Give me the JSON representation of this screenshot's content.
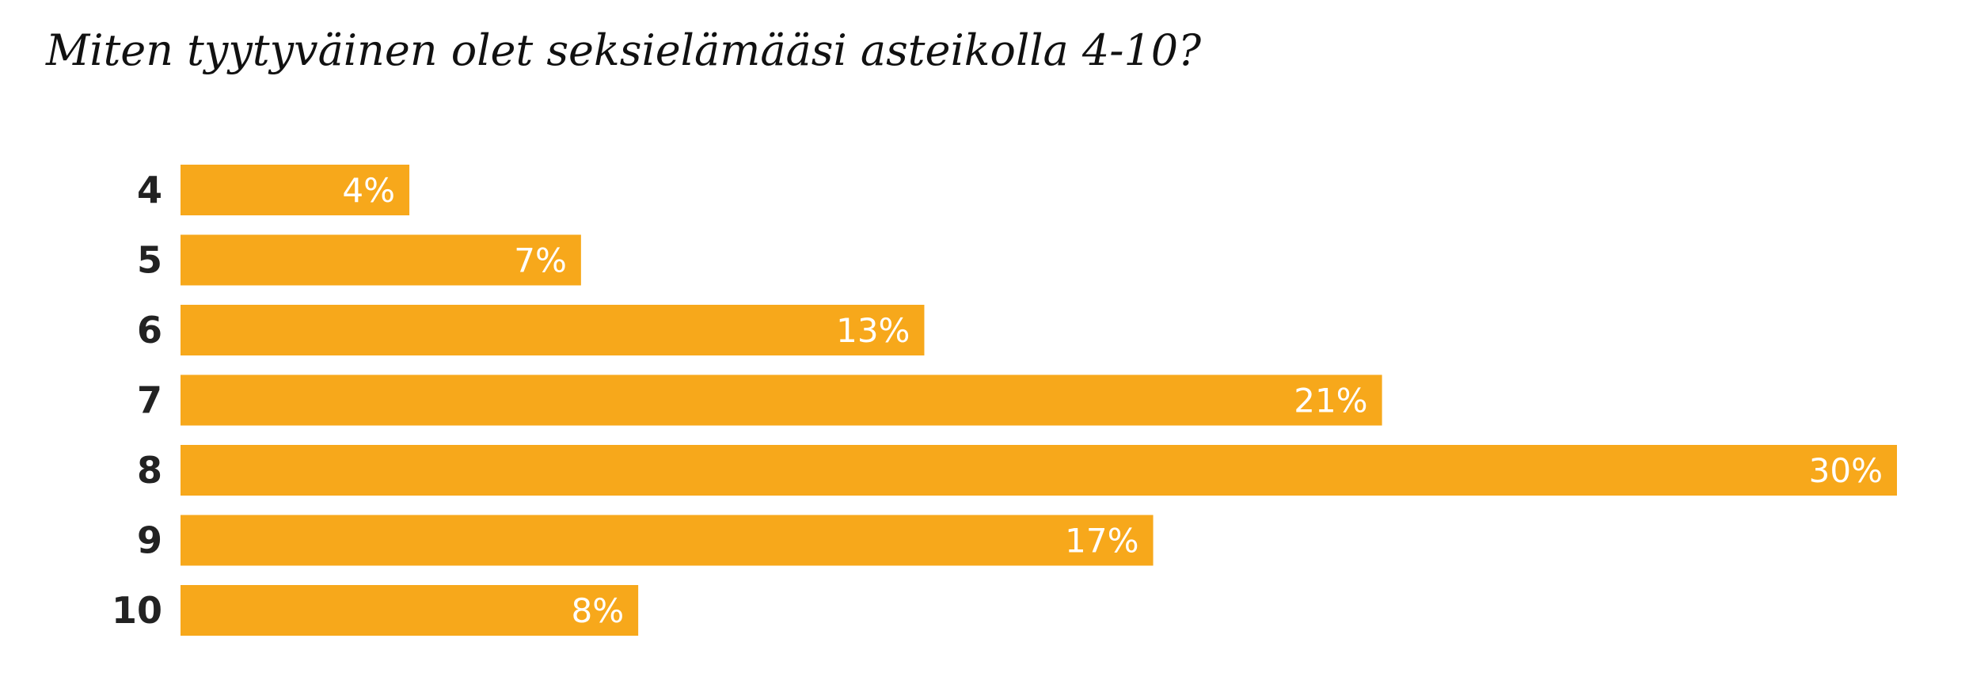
{
  "title": "Miten tyytyväinen olet seksielämääsi asteikolla 4-10?",
  "colors": {
    "bar": "#F7A81B",
    "category_text": "#222222",
    "value_text": "#FFFFFF",
    "background": "#FFFFFF"
  },
  "chart_data": {
    "type": "bar",
    "orientation": "horizontal",
    "title": "Miten tyytyväinen olet seksielämääsi asteikolla 4-10?",
    "categories": [
      "4",
      "5",
      "6",
      "7",
      "8",
      "9",
      "10"
    ],
    "values": [
      4,
      7,
      13,
      21,
      30,
      17,
      8
    ],
    "value_labels": [
      "4%",
      "7%",
      "13%",
      "21%",
      "30%",
      "17%",
      "8%"
    ],
    "unit": "%",
    "xlim": [
      0,
      30
    ],
    "grid": false,
    "legend": "none"
  }
}
